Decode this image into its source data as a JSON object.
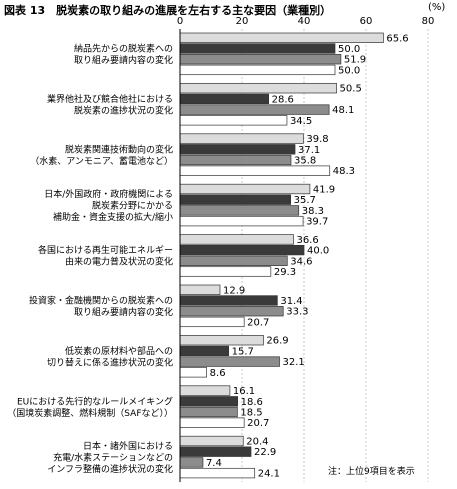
{
  "figure_title": "図表 13　脱炭素の取り組みの進展を左右する主な要因（業種別）",
  "unit": "(%)",
  "note": "注：上位9項目を表示",
  "chart_data": {
    "type": "bar",
    "orientation": "horizontal",
    "title": "図表 13　脱炭素の取り組みの進展を左右する主な要因（業種別）",
    "xlim": [
      0,
      80
    ],
    "ticks": [
      0,
      20,
      40,
      60,
      80
    ],
    "grid": true,
    "categories": [
      "納品先からの脱炭素への\n取り組み要請内容の変化",
      "業界他社及び競合他社における\n脱炭素の進捗状況の変化",
      "脱炭素関連技術動向の変化\n（水素、アンモニア、蓄電池など）",
      "日本/外国政府・政府機関による\n脱炭素分野にかかる\n補助金・資金支援の拡大/縮小",
      "各国における再生可能エネルギー\n由来の電力普及状況の変化",
      "投資家・金融機関からの脱炭素への\n取り組み要請内容の変化",
      "低炭素の原材料や部品への\n切り替えに係る進捗状況の変化",
      "EUにおける先行的なルールメイキング\n（国境炭素調整、燃料規制（SAFなど））",
      "日本・諸外国における\n充電/水素ステーションなどの\nインフラ整備の進捗状況の変化"
    ],
    "series": [
      {
        "values": [
          65.6,
          50.5,
          39.8,
          41.9,
          36.6,
          12.9,
          26.9,
          16.1,
          20.4
        ],
        "color": "#dcdcdc"
      },
      {
        "values": [
          50.0,
          28.6,
          37.1,
          35.7,
          40.0,
          31.4,
          15.7,
          18.6,
          22.9
        ],
        "color": "#3a3a3a"
      },
      {
        "values": [
          51.9,
          48.1,
          35.8,
          38.3,
          34.6,
          33.3,
          32.1,
          18.5,
          7.4
        ],
        "color": "#8c8c8c"
      },
      {
        "values": [
          50.0,
          34.5,
          48.3,
          39.7,
          29.3,
          20.7,
          8.6,
          20.7,
          24.1
        ],
        "color": "#ffffff"
      }
    ]
  }
}
